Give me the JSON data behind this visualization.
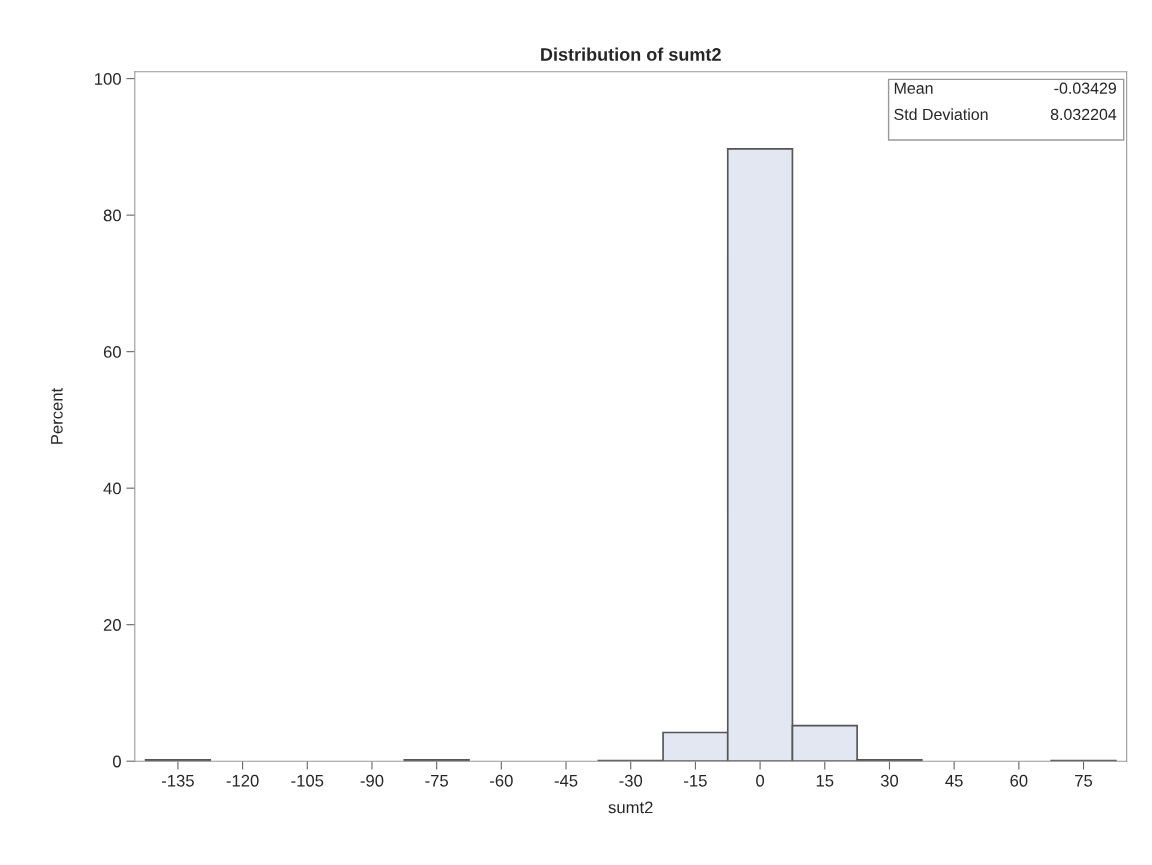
{
  "chart_data": {
    "type": "histogram",
    "title": "Distribution of sumt2",
    "xlabel": "sumt2",
    "ylabel": "Percent",
    "bins": [
      -142.5,
      -127.5,
      -112.5,
      -97.5,
      -82.5,
      -67.5,
      -52.5,
      -37.5,
      -22.5,
      -7.5,
      7.5,
      22.5,
      37.5,
      52.5,
      67.5,
      82.5
    ],
    "values": [
      0.2,
      0,
      0,
      0,
      0.2,
      0,
      0,
      0.1,
      4.2,
      89.7,
      5.2,
      0.2,
      0,
      0,
      0.1
    ],
    "color": "#e3e7f1",
    "xlim": [
      -145,
      85
    ],
    "xticks": [
      -135,
      -120,
      -105,
      -90,
      -75,
      -60,
      -45,
      -30,
      -15,
      0,
      15,
      30,
      45,
      60,
      75
    ],
    "ylim": [
      0,
      101
    ],
    "yticks": [
      0,
      20,
      40,
      60,
      80,
      100
    ],
    "grid": false,
    "annotations": [
      "Mean",
      "-0.03429",
      "Std Deviation",
      "8.032204"
    ]
  }
}
